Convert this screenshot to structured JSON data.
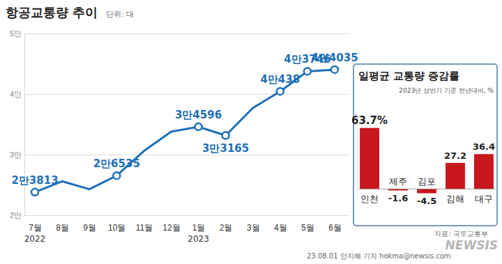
{
  "chart_data": [
    {
      "type": "line",
      "title": "항공교통량 추이",
      "subtitle": "단위: 대",
      "categories": [
        "7월",
        "8월",
        "9월",
        "10월",
        "11월",
        "12월",
        "1월",
        "2월",
        "3월",
        "4월",
        "5월",
        "6월"
      ],
      "values": [
        23813,
        25600,
        24300,
        26535,
        30600,
        33800,
        34596,
        33165,
        37700,
        40438,
        43746,
        44035
      ],
      "value_labels": [
        "2만3813",
        null,
        null,
        "2만6535",
        null,
        null,
        "3만4596",
        "3만3165",
        null,
        "4만438",
        "4만3746",
        "4만4035"
      ],
      "data_labels": true,
      "color": "#1d6fb8",
      "marker": "circle",
      "annotations": [
        {
          "text": "2022",
          "category": "7월"
        },
        {
          "text": "2023",
          "category": "1월"
        }
      ],
      "ylim": [
        20000,
        50000
      ],
      "yticks": [
        {
          "value": 20000,
          "label": "2만"
        },
        {
          "value": 30000,
          "label": "3만"
        },
        {
          "value": 40000,
          "label": "4만"
        },
        {
          "value": 50000,
          "label": "5만"
        }
      ],
      "grid": true
    },
    {
      "type": "bar",
      "title": "일평균 교통량 증감률",
      "subtitle": "2023년 상반기 기준 전년대비, %",
      "categories": [
        "인천",
        "제주",
        "김포",
        "김해",
        "대구"
      ],
      "values": [
        63.7,
        -1.6,
        -4.5,
        27.2,
        36.4
      ],
      "value_labels": [
        "63.7%",
        "-1.6",
        "-4.5",
        "27.2",
        "36.4"
      ],
      "data_labels": true,
      "color": "#c8161d",
      "ylim": [
        -10,
        70
      ],
      "tick_labels": false
    }
  ],
  "source": "자료: 국토교통부",
  "credit": "23.08.01 안지혜 기자 hokma@newsis.com",
  "logo": "NEWSIS"
}
